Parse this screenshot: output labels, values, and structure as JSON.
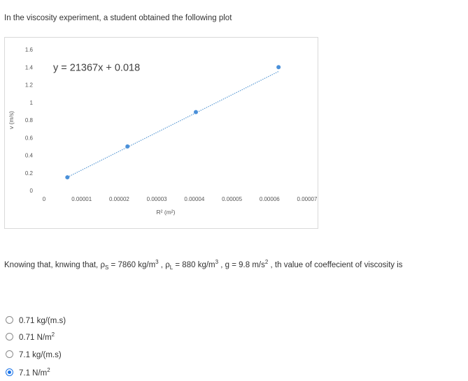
{
  "intro_text": "In the viscosity experiment, a student obtained the following plot",
  "chart_data": {
    "type": "scatter",
    "xlabel": "R² (m²)",
    "ylabel": "v (m/s)",
    "xlim": [
      0,
      7e-05
    ],
    "ylim": [
      0,
      1.6
    ],
    "x_ticks": [
      "0",
      "0.00001",
      "0.00002",
      "0.00003",
      "0.00004",
      "0.00005",
      "0.00006",
      "0.00007"
    ],
    "y_ticks": [
      "0",
      "0.2",
      "0.4",
      "0.6",
      "0.8",
      "1",
      "1.2",
      "1.4",
      "1.6"
    ],
    "points": [
      {
        "x": 6.2e-06,
        "y": 0.15
      },
      {
        "x": 2.22e-05,
        "y": 0.5
      },
      {
        "x": 4.04e-05,
        "y": 0.89
      },
      {
        "x": 6.24e-05,
        "y": 1.4
      }
    ],
    "trendline": {
      "slope": 21367,
      "intercept": 0.018
    },
    "equation": "y = 21367x + 0.018",
    "marker_color": "#4a90d9",
    "trendline_color": "#5b9bd5",
    "grid": false
  },
  "question": {
    "prefix": "Knowing that, knwing that, ρ",
    "s_sub": "S",
    "part1": " = 7860 kg/m",
    "exp1": "3",
    "part2": " , ρ",
    "l_sub": "L",
    "part3": " = 880 kg/m",
    "exp2": "3",
    "part4": " , g = 9.8 m/s",
    "exp3": "2",
    "part5": " , th value of coeffecient of viscosity is"
  },
  "options": [
    {
      "text": "0.71 kg/(m.s)",
      "sup": "",
      "checked": false
    },
    {
      "text": "0.71 N/m",
      "sup": "2",
      "checked": false
    },
    {
      "text": "7.1 kg/(m.s)",
      "sup": "",
      "checked": false
    },
    {
      "text": "7.1 N/m",
      "sup": "2",
      "checked": true
    }
  ],
  "accent_color": "#1a73e8"
}
